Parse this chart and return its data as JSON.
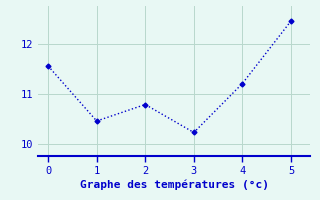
{
  "x": [
    0,
    1,
    2,
    3,
    4,
    5
  ],
  "y": [
    11.55,
    10.45,
    10.78,
    10.22,
    11.2,
    12.45
  ],
  "line_color": "#0000cc",
  "marker": "D",
  "marker_size": 2.5,
  "linewidth": 1.0,
  "linestyle": "dotted",
  "title": "Graphe des températures (°c)",
  "xlim": [
    -0.2,
    5.4
  ],
  "ylim": [
    9.75,
    12.75
  ],
  "yticks": [
    10,
    11,
    12
  ],
  "xticks": [
    0,
    1,
    2,
    3,
    4,
    5
  ],
  "background_color": "#e8f8f4",
  "grid_color": "#b8d8cc",
  "axis_color": "#0000cc",
  "tick_color": "#0000cc",
  "title_color": "#0000cc",
  "title_fontsize": 8,
  "tick_fontsize": 7.5
}
